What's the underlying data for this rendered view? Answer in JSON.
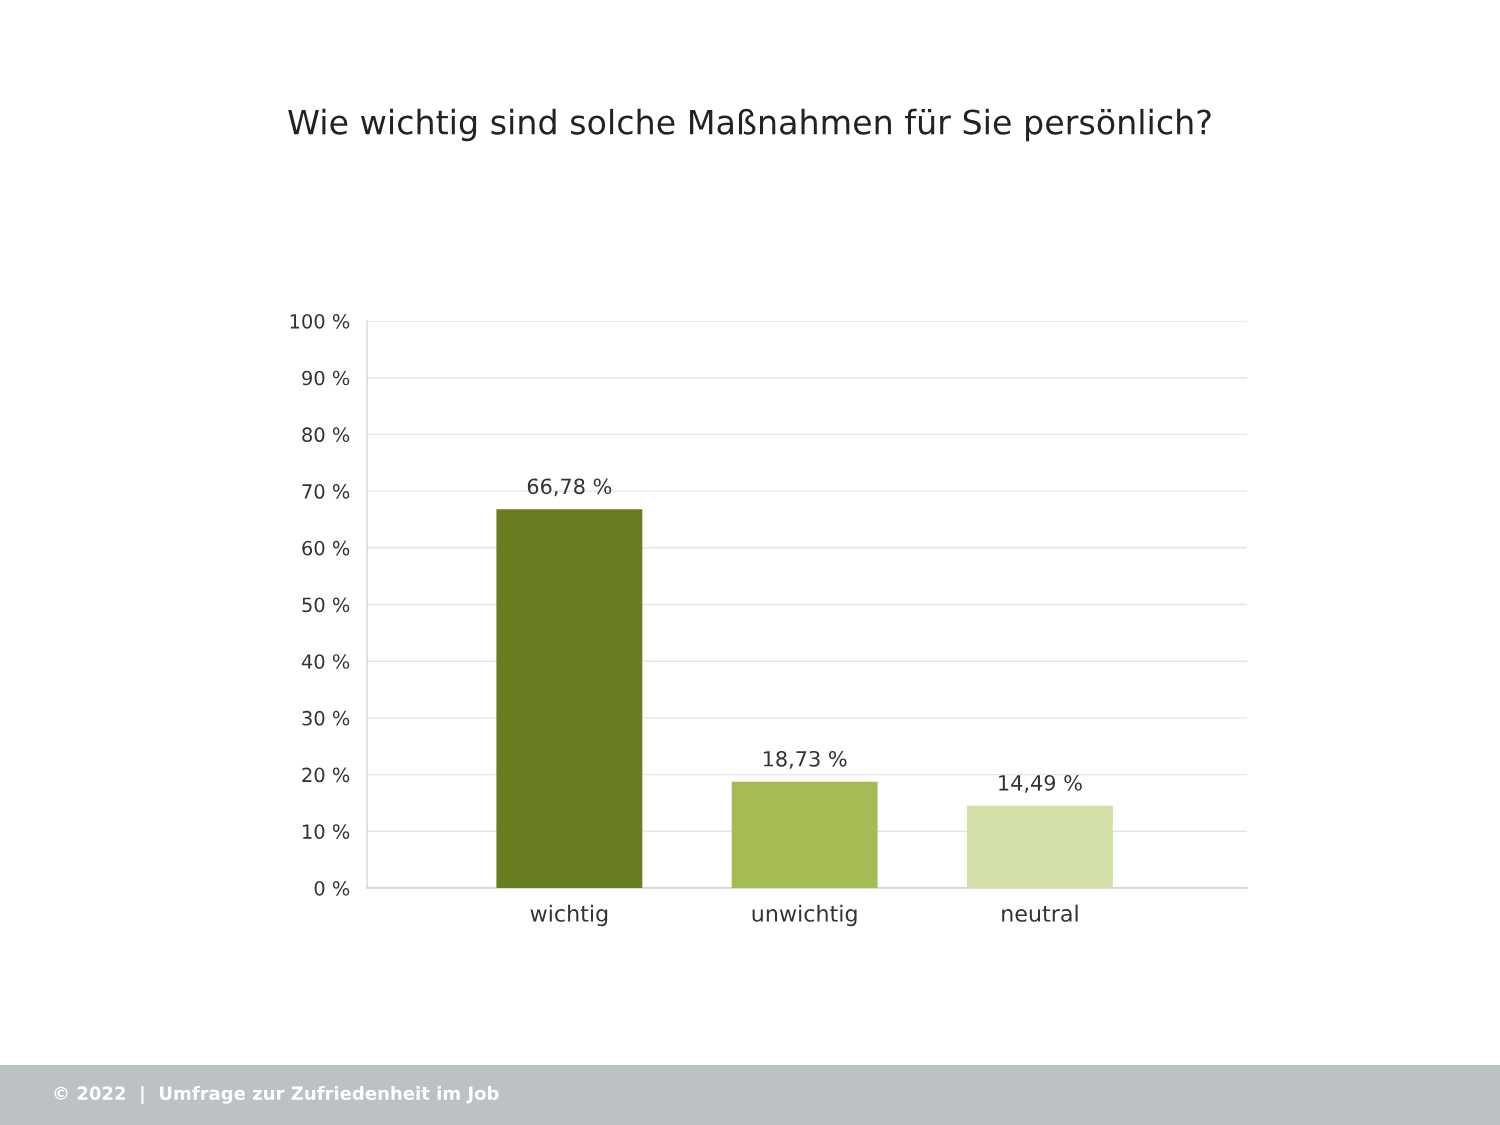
{
  "chart_data": {
    "type": "bar",
    "title": "Wie wichtig sind solche Maßnahmen für Sie persönlich?",
    "categories": [
      "wichtig",
      "unwichtig",
      "neutral"
    ],
    "values": [
      66.78,
      18.73,
      14.49
    ],
    "colors": [
      "#687d1f",
      "#a5bb53",
      "#d2dfa8"
    ],
    "value_labels": [
      "66,78 %",
      "18,73 %",
      "14,49 %"
    ],
    "ylim": [
      0,
      100
    ],
    "yticks": [
      {
        "value": 0,
        "label": "0 %"
      },
      {
        "value": 10,
        "label": "10 %"
      },
      {
        "value": 20,
        "label": "20 %"
      },
      {
        "value": 30,
        "label": "30 %"
      },
      {
        "value": 40,
        "label": "40 %"
      },
      {
        "value": 50,
        "label": "50 %"
      },
      {
        "value": 60,
        "label": "60 %"
      },
      {
        "value": 70,
        "label": "70 %"
      },
      {
        "value": 80,
        "label": "80 %"
      },
      {
        "value": 90,
        "label": "90 %"
      },
      {
        "value": 100,
        "label": "100 %"
      }
    ],
    "grid": "y",
    "annotations": [
      "© 2022  |  Umfrage zur Zufriedenheit im Job"
    ]
  }
}
